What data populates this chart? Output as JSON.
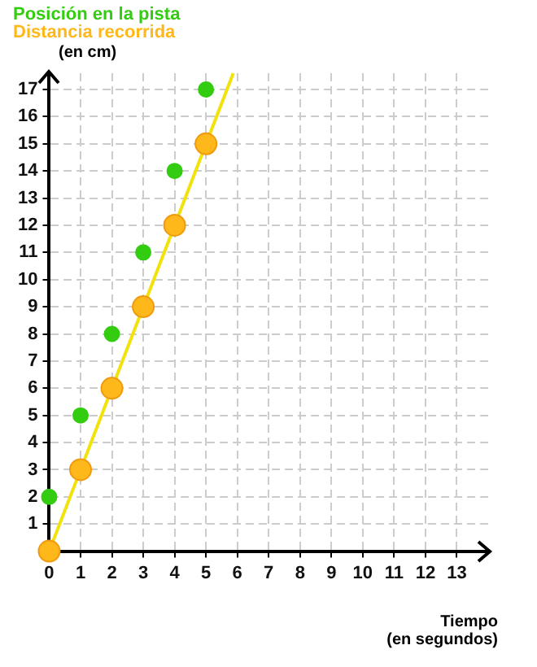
{
  "chart_data": {
    "type": "scatter",
    "xlabel": "Tiempo\n(en segundos)",
    "ylabel": "(en cm)",
    "x": [
      0,
      1,
      2,
      3,
      4,
      5
    ],
    "series": [
      {
        "name": "Posición en la pista",
        "color": "#33cc11",
        "values": [
          2,
          5,
          8,
          11,
          14,
          17
        ]
      },
      {
        "type": "line",
        "color": "#f2e20c",
        "x": [
          0,
          5.87
        ],
        "values": [
          0,
          17.6
        ],
        "marker": "none"
      },
      {
        "name": "Distancia recorrida",
        "color": "#ffb81a",
        "values": [
          0,
          3,
          6,
          9,
          12,
          15
        ]
      }
    ],
    "xlim": [
      0,
      14
    ],
    "ylim": [
      0,
      17.6
    ],
    "xticks": [
      0,
      1,
      2,
      3,
      4,
      5,
      6,
      7,
      8,
      9,
      10,
      11,
      12,
      13
    ],
    "yticks": [
      1,
      2,
      3,
      4,
      5,
      6,
      7,
      8,
      9,
      10,
      11,
      12,
      13,
      14,
      15,
      16,
      17
    ],
    "grid": true,
    "legend": "top left",
    "marker": "circle",
    "line_style": "solid"
  }
}
